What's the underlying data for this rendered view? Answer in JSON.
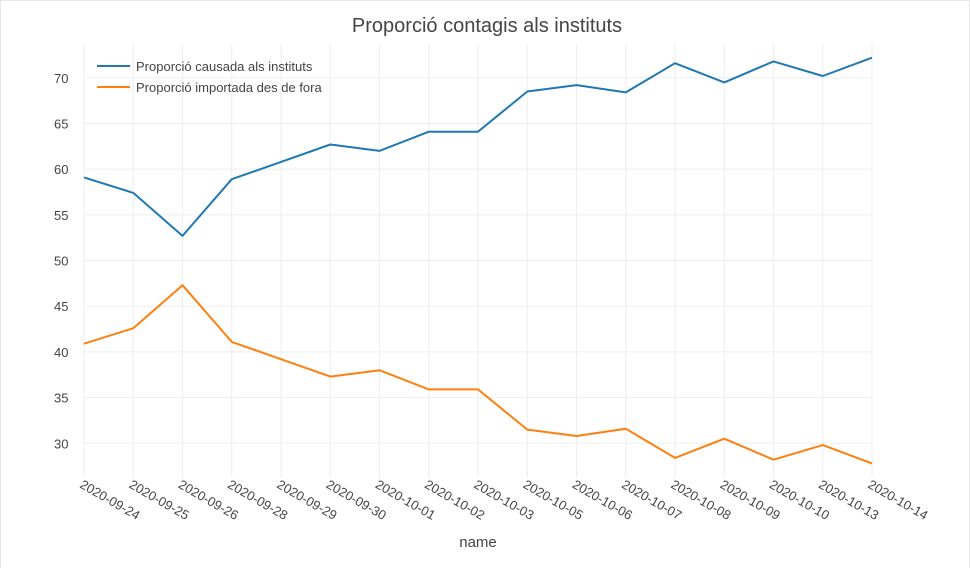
{
  "chart_data": {
    "type": "line",
    "title": "Proporció contagis als instituts",
    "xlabel": "name",
    "ylabel": "",
    "categories": [
      "2020-09-24",
      "2020-09-25",
      "2020-09-26",
      "2020-09-28",
      "2020-09-29",
      "2020-09-30",
      "2020-10-01",
      "2020-10-02",
      "2020-10-03",
      "2020-10-05",
      "2020-10-06",
      "2020-10-07",
      "2020-10-08",
      "2020-10-09",
      "2020-10-10",
      "2020-10-13",
      "2020-10-14"
    ],
    "y_ticks": [
      30,
      35,
      40,
      45,
      50,
      55,
      60,
      65,
      70
    ],
    "ylim": [
      26.2,
      73.7
    ],
    "grid": true,
    "legend_position": "top-left",
    "series": [
      {
        "name": "Proporció causada als instituts",
        "color": "#1f77b4",
        "values": [
          59.1,
          57.4,
          52.7,
          58.9,
          60.8,
          62.7,
          62.0,
          64.1,
          64.1,
          68.5,
          69.2,
          68.4,
          71.6,
          69.5,
          71.8,
          70.2,
          72.2
        ]
      },
      {
        "name": "Proporció importada des de fora",
        "color": "#ff7f0e",
        "values": [
          40.9,
          42.6,
          47.3,
          41.1,
          39.2,
          37.3,
          38.0,
          35.9,
          35.9,
          31.5,
          30.8,
          31.6,
          28.4,
          30.5,
          28.2,
          29.8,
          27.8
        ]
      }
    ]
  }
}
